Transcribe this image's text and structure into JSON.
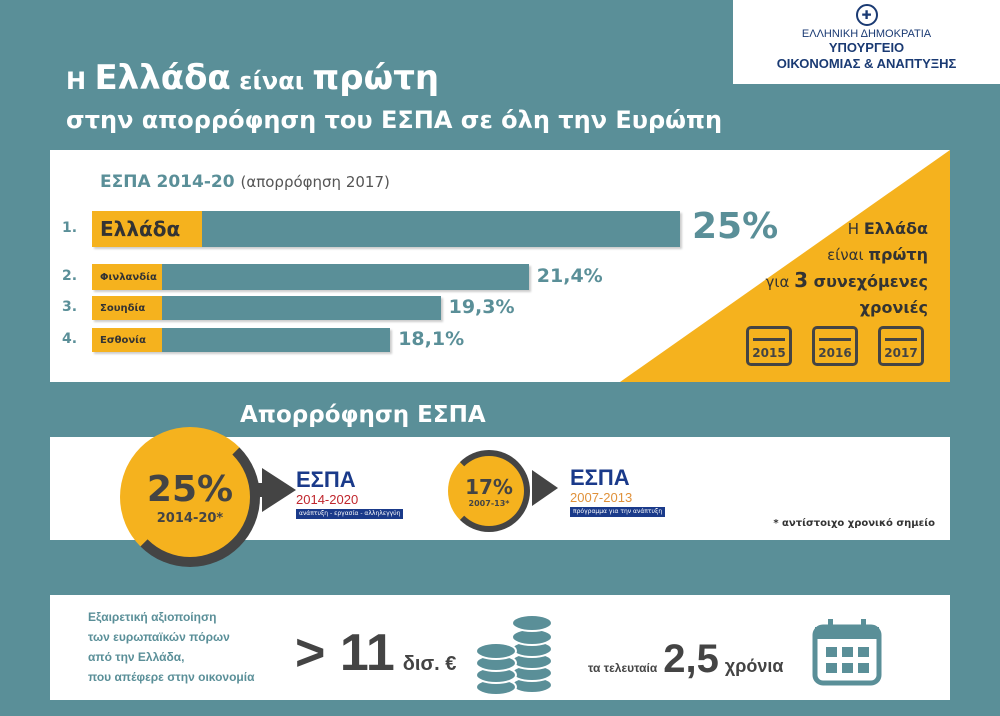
{
  "logo": {
    "line1": "ΕΛΛΗΝΙΚΗ ΔΗΜΟΚΡΑΤΙΑ",
    "line2": "ΥΠΟΥΡΓΕΙΟ",
    "line3": "ΟΙΚΟΝΟΜΙΑΣ & ΑΝΑΠΤΥΞΗΣ"
  },
  "title": {
    "pre": "Η ",
    "country": "Ελλάδα",
    "mid": " είναι ",
    "first": "πρώτη",
    "line2": "στην απορρόφηση του ΕΣΠΑ σε όλη την Ευρώπη"
  },
  "chart_data": {
    "type": "bar",
    "title": "ΕΣΠΑ 2014-20",
    "subtitle": "(απορρόφηση 2017)",
    "ranks": [
      "1.",
      "2.",
      "3.",
      "4."
    ],
    "categories": [
      "Ελλάδα",
      "Φινλανδία",
      "Σουηδία",
      "Εσθονία"
    ],
    "values": [
      25,
      21.4,
      19.3,
      18.1
    ],
    "value_labels": [
      "25%",
      "21,4%",
      "19,3%",
      "18,1%"
    ],
    "xlabel": "",
    "ylabel": ""
  },
  "side": {
    "pre1": "Η ",
    "country": "Ελλάδα",
    "pre2": "είναι ",
    "first": "πρώτη",
    "pre3": "για ",
    "num": "3",
    "consecutive": " συνεχόμενες",
    "years": "χρονιές",
    "calendar_years": [
      "2015",
      "2016",
      "2017"
    ]
  },
  "absorption": {
    "title": "Απορρόφηση ΕΣΠΑ",
    "current": {
      "value": "25%",
      "period": "2014-20*",
      "logo_title": "ΕΣΠΑ",
      "logo_years": "2014-2020",
      "logo_slogan": "ανάπτυξη - εργασία - αλληλεγγύη"
    },
    "previous": {
      "value": "17%",
      "period": "2007-13*",
      "logo_title": "ΕΣΠΑ",
      "logo_years": "2007-2013",
      "logo_slogan": "πρόγραμμα για την ανάπτυξη"
    },
    "footnote": "* αντίστοιχο χρονικό σημείο"
  },
  "bottom": {
    "desc": [
      "Εξαιρετική αξιοποίηση",
      "των ευρωπαϊκών πόρων",
      "από την Ελλάδα,",
      "που απέφερε στην οικονομία"
    ],
    "amount": "> 11",
    "unit": "δισ. €",
    "last": "τα τελευταία",
    "years_num": "2,5",
    "years": "χρόνια"
  },
  "colors": {
    "teal": "#5a8f98",
    "yellow": "#f5b21e",
    "dark": "#444444"
  }
}
